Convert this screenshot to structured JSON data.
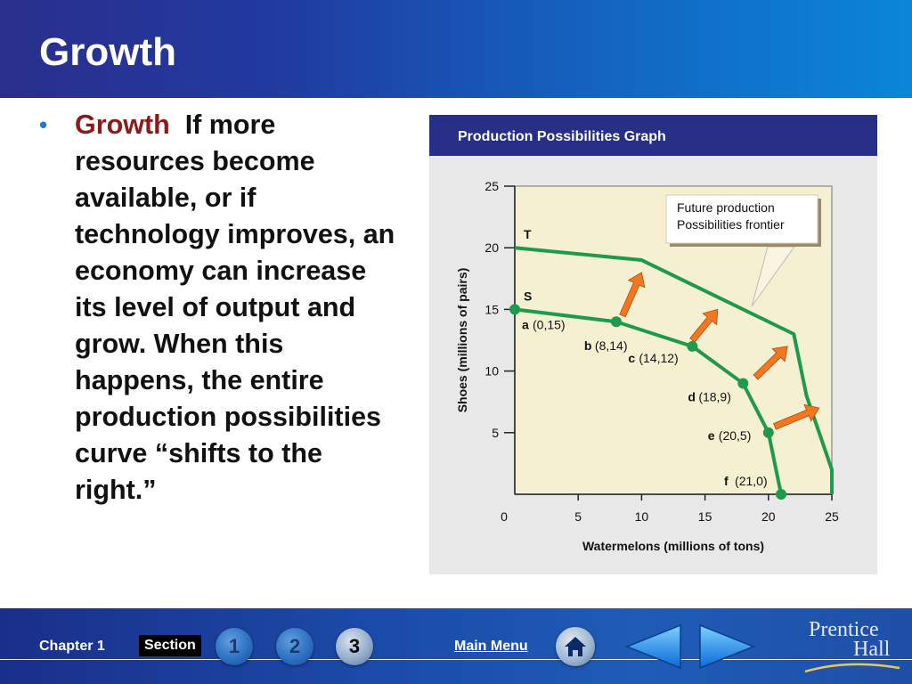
{
  "slide": {
    "title": "Growth",
    "bullet": {
      "term": "Growth",
      "text": "If more resources become available, or if technology improves, an economy can increase its level of output and grow. When this happens, the entire production possibilities curve “shifts to the right.”"
    }
  },
  "chart_data": {
    "type": "line",
    "title": "Production Possibilities Graph",
    "xlabel": "Watermelons (millions of tons)",
    "ylabel": "Shoes (millions of pairs)",
    "xlim": [
      0,
      25
    ],
    "ylim": [
      0,
      25
    ],
    "x_ticks": [
      "0",
      "5",
      "10",
      "15",
      "20",
      "25"
    ],
    "y_ticks": [
      "5",
      "10",
      "15",
      "20",
      "25"
    ],
    "grid": false,
    "series": [
      {
        "name": "S",
        "color": "#1e9a4a",
        "points": [
          [
            0,
            15
          ],
          [
            8,
            14
          ],
          [
            14,
            12
          ],
          [
            18,
            9
          ],
          [
            20,
            5
          ],
          [
            21,
            0
          ]
        ],
        "labels": [
          {
            "letter": "a",
            "coord": "(0,15)"
          },
          {
            "letter": "b",
            "coord": "(8,14)"
          },
          {
            "letter": "c",
            "coord": "(14,12)"
          },
          {
            "letter": "d",
            "coord": "(18,9)"
          },
          {
            "letter": "e",
            "coord": "(20,5)"
          },
          {
            "letter": "f",
            "coord": "(21,0)"
          }
        ]
      },
      {
        "name": "T",
        "color": "#1e9a4a",
        "points": [
          [
            0,
            20
          ],
          [
            10,
            19
          ],
          [
            22,
            13
          ],
          [
            23,
            8
          ],
          [
            25,
            2
          ],
          [
            25,
            0
          ]
        ]
      }
    ],
    "callout": {
      "line1": "Future production",
      "line2": "Possibilities frontier"
    },
    "arrow_color": "#f07820",
    "shift_arrows": [
      {
        "from": [
          8.5,
          14.5
        ],
        "to": [
          10,
          18
        ]
      },
      {
        "from": [
          14,
          12.5
        ],
        "to": [
          16,
          15
        ]
      },
      {
        "from": [
          19,
          9.5
        ],
        "to": [
          21.5,
          12
        ]
      },
      {
        "from": [
          20.5,
          5.5
        ],
        "to": [
          24,
          7
        ]
      }
    ]
  },
  "footer": {
    "chapter": "Chapter 1",
    "section": "Section",
    "section_buttons": [
      "1",
      "2",
      "3"
    ],
    "main_menu": "Main Menu",
    "brand_line1": "Prentice",
    "brand_line2": "Hall"
  }
}
